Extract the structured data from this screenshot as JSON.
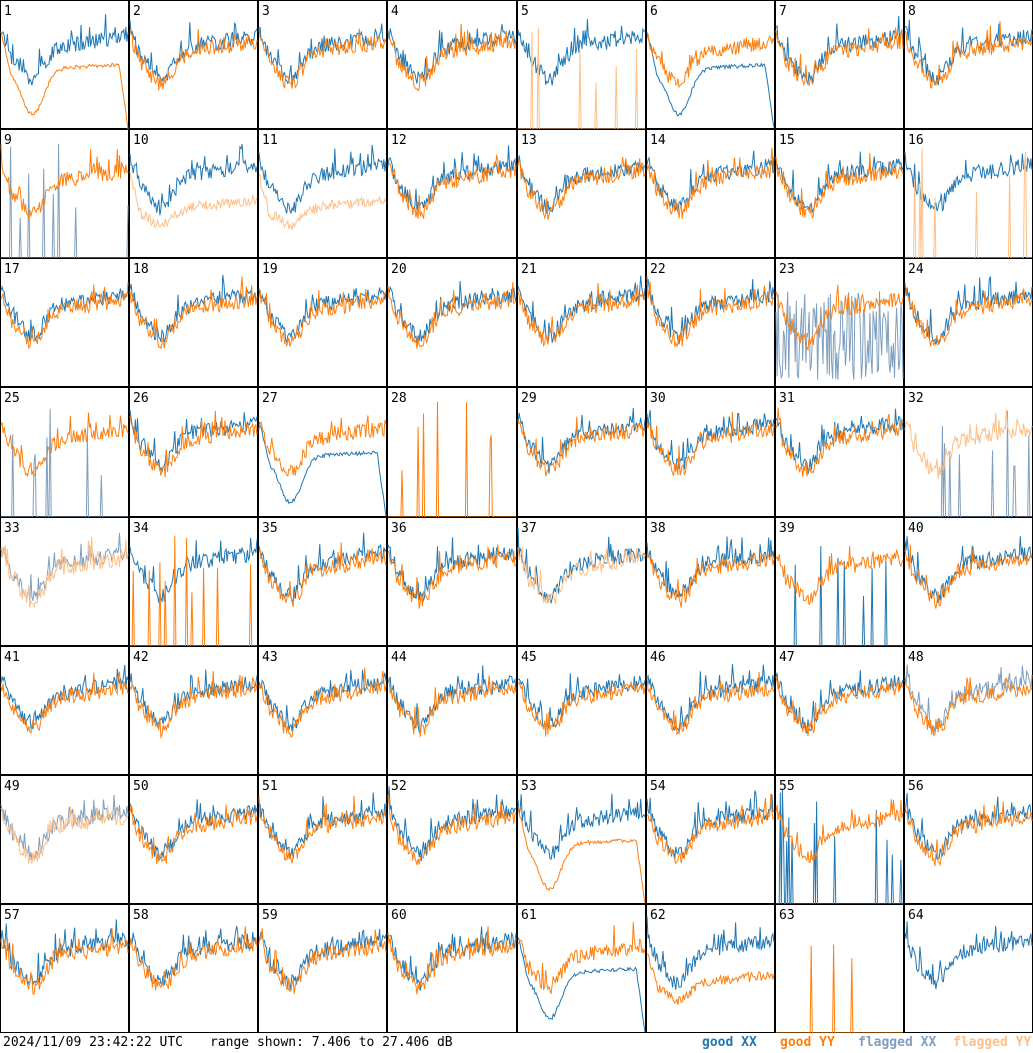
{
  "footer": {
    "timestamp": "2024/11/09 23:42:22 UTC",
    "range_text": "range shown: 7.406 to 27.406 dB"
  },
  "legend": [
    {
      "label": "good XX",
      "color": "#1f77b4"
    },
    {
      "label": "good YY",
      "color": "#ff7f0e"
    },
    {
      "label": "flagged XX",
      "color": "#7f9fbf"
    },
    {
      "label": "flagged YY",
      "color": "#ffbf87"
    }
  ],
  "chart_data": {
    "type": "line",
    "ylim": [
      7.406,
      27.406
    ],
    "grid_rows": 8,
    "grid_cols": 8,
    "panels": [
      {
        "label": "1",
        "xx": "good",
        "yy": "good",
        "xx_shape": "normal",
        "yy_shape": "dip"
      },
      {
        "label": "2",
        "xx": "good",
        "yy": "good",
        "xx_shape": "normal",
        "yy_shape": "normal"
      },
      {
        "label": "3",
        "xx": "good",
        "yy": "good",
        "xx_shape": "normal",
        "yy_shape": "normal"
      },
      {
        "label": "4",
        "xx": "good",
        "yy": "good",
        "xx_shape": "normal",
        "yy_shape": "normal"
      },
      {
        "label": "5",
        "xx": "good",
        "yy": "flagged",
        "xx_shape": "normal",
        "yy_shape": "spikes"
      },
      {
        "label": "6",
        "xx": "good",
        "yy": "good",
        "xx_shape": "dip",
        "yy_shape": "normal"
      },
      {
        "label": "7",
        "xx": "good",
        "yy": "good",
        "xx_shape": "normal",
        "yy_shape": "normal"
      },
      {
        "label": "8",
        "xx": "good",
        "yy": "good",
        "xx_shape": "normal",
        "yy_shape": "normal"
      },
      {
        "label": "9",
        "xx": "flagged",
        "yy": "good",
        "xx_shape": "spikes",
        "yy_shape": "normal"
      },
      {
        "label": "10",
        "xx": "good",
        "yy": "flagged",
        "xx_shape": "normal",
        "yy_shape": "low"
      },
      {
        "label": "11",
        "xx": "good",
        "yy": "flagged",
        "xx_shape": "normal",
        "yy_shape": "low"
      },
      {
        "label": "12",
        "xx": "good",
        "yy": "good",
        "xx_shape": "normal",
        "yy_shape": "normal"
      },
      {
        "label": "13",
        "xx": "good",
        "yy": "good",
        "xx_shape": "normal",
        "yy_shape": "normal"
      },
      {
        "label": "14",
        "xx": "good",
        "yy": "good",
        "xx_shape": "normal",
        "yy_shape": "normal"
      },
      {
        "label": "15",
        "xx": "good",
        "yy": "good",
        "xx_shape": "normal",
        "yy_shape": "normal"
      },
      {
        "label": "16",
        "xx": "good",
        "yy": "flagged",
        "xx_shape": "normal",
        "yy_shape": "spikes"
      },
      {
        "label": "17",
        "xx": "good",
        "yy": "good",
        "xx_shape": "normal",
        "yy_shape": "normal"
      },
      {
        "label": "18",
        "xx": "good",
        "yy": "good",
        "xx_shape": "normal",
        "yy_shape": "normal"
      },
      {
        "label": "19",
        "xx": "good",
        "yy": "good",
        "xx_shape": "normal",
        "yy_shape": "normal"
      },
      {
        "label": "20",
        "xx": "good",
        "yy": "good",
        "xx_shape": "normal",
        "yy_shape": "normal"
      },
      {
        "label": "21",
        "xx": "good",
        "yy": "good",
        "xx_shape": "normal",
        "yy_shape": "normal"
      },
      {
        "label": "22",
        "xx": "good",
        "yy": "good",
        "xx_shape": "normal",
        "yy_shape": "normal"
      },
      {
        "label": "23",
        "xx": "flagged",
        "yy": "good",
        "xx_shape": "noisy",
        "yy_shape": "normal"
      },
      {
        "label": "24",
        "xx": "good",
        "yy": "good",
        "xx_shape": "normal",
        "yy_shape": "normal"
      },
      {
        "label": "25",
        "xx": "flagged",
        "yy": "good",
        "xx_shape": "spikes",
        "yy_shape": "normal"
      },
      {
        "label": "26",
        "xx": "good",
        "yy": "good",
        "xx_shape": "normal",
        "yy_shape": "normal"
      },
      {
        "label": "27",
        "xx": "good",
        "yy": "good",
        "xx_shape": "dip",
        "yy_shape": "normal"
      },
      {
        "label": "28",
        "xx": "none",
        "yy": "good",
        "xx_shape": "none",
        "yy_shape": "spikes"
      },
      {
        "label": "29",
        "xx": "good",
        "yy": "good",
        "xx_shape": "normal",
        "yy_shape": "normal"
      },
      {
        "label": "30",
        "xx": "good",
        "yy": "good",
        "xx_shape": "normal",
        "yy_shape": "normal"
      },
      {
        "label": "31",
        "xx": "good",
        "yy": "good",
        "xx_shape": "normal",
        "yy_shape": "normal"
      },
      {
        "label": "32",
        "xx": "flagged",
        "yy": "flagged",
        "xx_shape": "spikes",
        "yy_shape": "normal"
      },
      {
        "label": "33",
        "xx": "flagged",
        "yy": "flagged",
        "xx_shape": "normal",
        "yy_shape": "normal"
      },
      {
        "label": "34",
        "xx": "good",
        "yy": "good",
        "xx_shape": "normal",
        "yy_shape": "spikes"
      },
      {
        "label": "35",
        "xx": "good",
        "yy": "good",
        "xx_shape": "normal",
        "yy_shape": "normal"
      },
      {
        "label": "36",
        "xx": "good",
        "yy": "good",
        "xx_shape": "normal",
        "yy_shape": "normal"
      },
      {
        "label": "37",
        "xx": "good",
        "yy": "flagged",
        "xx_shape": "normal",
        "yy_shape": "normal"
      },
      {
        "label": "38",
        "xx": "good",
        "yy": "good",
        "xx_shape": "normal",
        "yy_shape": "normal"
      },
      {
        "label": "39",
        "xx": "good",
        "yy": "good",
        "xx_shape": "spikes",
        "yy_shape": "normal"
      },
      {
        "label": "40",
        "xx": "good",
        "yy": "good",
        "xx_shape": "normal",
        "yy_shape": "normal"
      },
      {
        "label": "41",
        "xx": "good",
        "yy": "good",
        "xx_shape": "normal",
        "yy_shape": "normal"
      },
      {
        "label": "42",
        "xx": "good",
        "yy": "good",
        "xx_shape": "normal",
        "yy_shape": "normal"
      },
      {
        "label": "43",
        "xx": "good",
        "yy": "good",
        "xx_shape": "normal",
        "yy_shape": "normal"
      },
      {
        "label": "44",
        "xx": "good",
        "yy": "good",
        "xx_shape": "normal",
        "yy_shape": "normal"
      },
      {
        "label": "45",
        "xx": "good",
        "yy": "good",
        "xx_shape": "normal",
        "yy_shape": "normal"
      },
      {
        "label": "46",
        "xx": "good",
        "yy": "good",
        "xx_shape": "normal",
        "yy_shape": "normal"
      },
      {
        "label": "47",
        "xx": "good",
        "yy": "good",
        "xx_shape": "normal",
        "yy_shape": "normal"
      },
      {
        "label": "48",
        "xx": "flagged",
        "yy": "good",
        "xx_shape": "normal",
        "yy_shape": "normal"
      },
      {
        "label": "49",
        "xx": "flagged",
        "yy": "flagged",
        "xx_shape": "normal",
        "yy_shape": "normal"
      },
      {
        "label": "50",
        "xx": "good",
        "yy": "good",
        "xx_shape": "normal",
        "yy_shape": "normal"
      },
      {
        "label": "51",
        "xx": "good",
        "yy": "good",
        "xx_shape": "normal",
        "yy_shape": "normal"
      },
      {
        "label": "52",
        "xx": "good",
        "yy": "good",
        "xx_shape": "normal",
        "yy_shape": "normal"
      },
      {
        "label": "53",
        "xx": "good",
        "yy": "good",
        "xx_shape": "normal",
        "yy_shape": "dip"
      },
      {
        "label": "54",
        "xx": "good",
        "yy": "good",
        "xx_shape": "normal",
        "yy_shape": "normal"
      },
      {
        "label": "55",
        "xx": "good",
        "yy": "good",
        "xx_shape": "spikes",
        "yy_shape": "normal"
      },
      {
        "label": "56",
        "xx": "good",
        "yy": "good",
        "xx_shape": "normal",
        "yy_shape": "normal"
      },
      {
        "label": "57",
        "xx": "good",
        "yy": "good",
        "xx_shape": "normal",
        "yy_shape": "normal"
      },
      {
        "label": "58",
        "xx": "good",
        "yy": "good",
        "xx_shape": "normal",
        "yy_shape": "normal"
      },
      {
        "label": "59",
        "xx": "good",
        "yy": "good",
        "xx_shape": "normal",
        "yy_shape": "normal"
      },
      {
        "label": "60",
        "xx": "good",
        "yy": "good",
        "xx_shape": "normal",
        "yy_shape": "normal"
      },
      {
        "label": "61",
        "xx": "good",
        "yy": "good",
        "xx_shape": "dip",
        "yy_shape": "normal"
      },
      {
        "label": "62",
        "xx": "good",
        "yy": "good",
        "xx_shape": "normal",
        "yy_shape": "low"
      },
      {
        "label": "63",
        "xx": "none",
        "yy": "good",
        "xx_shape": "none",
        "yy_shape": "spikes"
      },
      {
        "label": "64",
        "xx": "good",
        "yy": "none",
        "xx_shape": "normal",
        "yy_shape": "none"
      }
    ]
  }
}
